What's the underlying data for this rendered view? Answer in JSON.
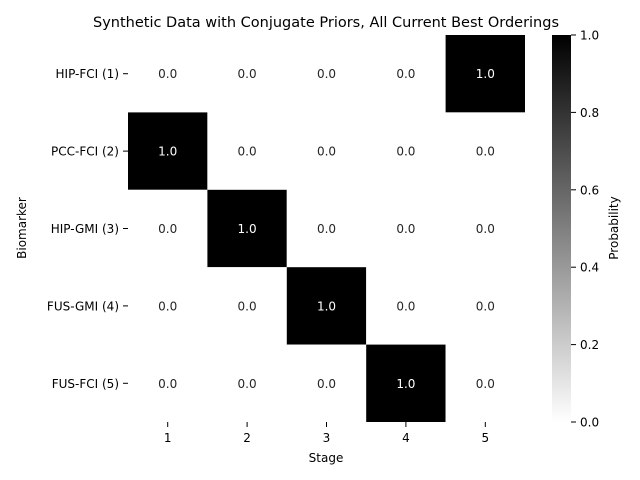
{
  "chart_data": {
    "type": "heatmap",
    "title": "Synthetic Data with Conjugate Priors, All Current Best Orderings",
    "xlabel": "Stage",
    "ylabel": "Biomarker",
    "x_categories": [
      "1",
      "2",
      "3",
      "4",
      "5"
    ],
    "y_categories": [
      "HIP-FCI (1)",
      "PCC-FCI (2)",
      "HIP-GMI (3)",
      "FUS-GMI (4)",
      "FUS-FCI (5)"
    ],
    "values": [
      [
        0.0,
        0.0,
        0.0,
        0.0,
        1.0
      ],
      [
        1.0,
        0.0,
        0.0,
        0.0,
        0.0
      ],
      [
        0.0,
        1.0,
        0.0,
        0.0,
        0.0
      ],
      [
        0.0,
        0.0,
        1.0,
        0.0,
        0.0
      ],
      [
        0.0,
        0.0,
        0.0,
        1.0,
        0.0
      ]
    ],
    "annotation_format": "0.0",
    "colormap": {
      "low": "#ffffff",
      "high": "#000000"
    },
    "colorbar": {
      "label": "Probability",
      "range": [
        0.0,
        1.0
      ],
      "ticks": [
        0.0,
        0.2,
        0.4,
        0.6,
        0.8,
        1.0
      ],
      "tick_labels": [
        "0.0",
        "0.2",
        "0.4",
        "0.6",
        "0.8",
        "1.0"
      ]
    },
    "grid": false
  }
}
